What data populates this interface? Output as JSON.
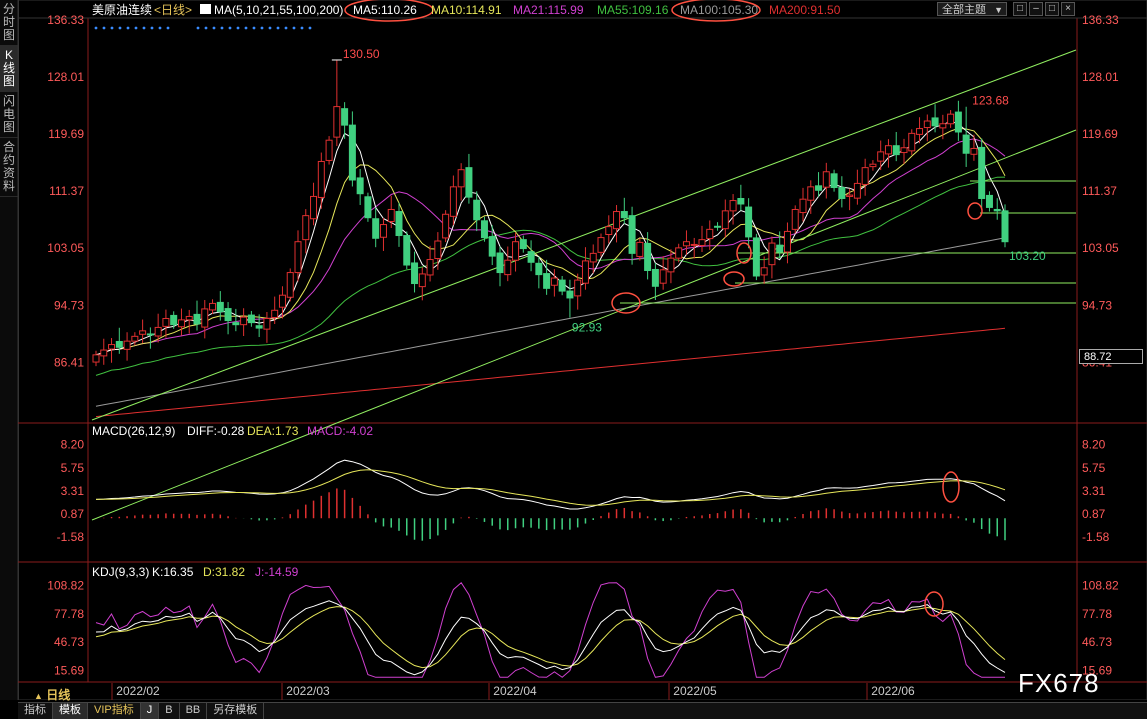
{
  "sidebar": {
    "items": [
      {
        "label": "分时图",
        "active": false
      },
      {
        "label": "K线图",
        "active": true
      },
      {
        "label": "闪电图",
        "active": false
      },
      {
        "label": "合约资料",
        "active": false
      }
    ]
  },
  "header": {
    "instrument": "美原油连续",
    "period": "<日线>",
    "ma_prefix": "MA(5,10,21,55,100,200)",
    "ma_values": [
      {
        "label": "MA5:110.26",
        "color": "#ffffff",
        "circled": true
      },
      {
        "label": "MA10:114.91",
        "color": "#e6e65a",
        "circled": false
      },
      {
        "label": "MA21:115.99",
        "color": "#d040d0",
        "circled": false
      },
      {
        "label": "MA55:109.16",
        "color": "#40c040",
        "circled": false
      },
      {
        "label": "MA100:105.30",
        "color": "#9a9a9a",
        "circled": true
      },
      {
        "label": "MA200:91.50",
        "color": "#e03030",
        "circled": false
      }
    ],
    "theme_button": "全部主题",
    "window_buttons": [
      "□",
      "–",
      "□",
      "×"
    ]
  },
  "price_axis": {
    "labels": [
      "136.33",
      "128.01",
      "119.69",
      "111.37",
      "103.05",
      "94.73",
      "86.41"
    ],
    "current_price": "88.72",
    "ymin": 78,
    "ymax": 136.33
  },
  "annotations": {
    "high_label": "130.50",
    "high2_label": "123.68",
    "low_label": "92.93",
    "last_label": "103.20"
  },
  "macd": {
    "title": "MACD(26,12,9)",
    "diff": "DIFF:-0.28",
    "dea": "DEA:1.73",
    "macd": "MACD:-4.02",
    "axis_labels": [
      "8.20",
      "5.75",
      "3.31",
      "0.87",
      "-1.58"
    ]
  },
  "kdj": {
    "title": "KDJ(9,3,3)",
    "k": "K:16.35",
    "d": "D:31.82",
    "j": "J:-14.59",
    "axis_labels": [
      "108.82",
      "77.78",
      "46.73",
      "15.69"
    ]
  },
  "x_axis": {
    "labels": [
      "2022/02",
      "2022/03",
      "2022/04",
      "2022/05",
      "2022/06"
    ]
  },
  "bottom_tabs": [
    "指标",
    "模板",
    "VIP指标",
    "J",
    "B",
    "BB",
    "另存模板"
  ],
  "period_label": "日线",
  "watermark": "FX678",
  "colors": {
    "up": "#e03030",
    "down": "#40d080",
    "ma5": "#ffffff",
    "ma10": "#e6e65a",
    "ma21": "#d040d0",
    "ma55": "#40c040",
    "ma100": "#9a9a9a",
    "ma200": "#e03030",
    "trend": "#90ee60",
    "axis_text": "#ff5a5a",
    "circle": "#ff5040"
  },
  "chart_data": {
    "type": "candlestick",
    "closes": [
      87.5,
      88.2,
      89.0,
      88.6,
      89.5,
      90.2,
      91.0,
      90.4,
      91.5,
      92.8,
      91.9,
      92.6,
      93.1,
      92.0,
      94.2,
      95.0,
      93.8,
      92.5,
      91.9,
      93.0,
      92.2,
      91.4,
      92.8,
      94.0,
      96.2,
      99.5,
      104.0,
      107.8,
      110.6,
      115.7,
      118.8,
      123.7,
      121.0,
      113.0,
      111.0,
      107.5,
      104.5,
      106.5,
      108.7,
      104.9,
      100.6,
      97.9,
      99.3,
      101.4,
      104.1,
      108.0,
      112.0,
      114.5,
      110.5,
      107.2,
      104.6,
      101.9,
      99.5,
      101.3,
      104.0,
      103.0,
      101.0,
      99.2,
      97.2,
      98.7,
      96.8,
      95.8,
      98.4,
      101.2,
      102.3,
      104.6,
      106.2,
      108.4,
      107.5,
      102.3,
      103.9,
      99.8,
      97.5,
      99.9,
      101.6,
      103.1,
      104.0,
      103.6,
      104.3,
      105.8,
      106.2,
      108.5,
      110.0,
      109.5,
      104.7,
      99.0,
      100.2,
      103.8,
      102.5,
      105.5,
      108.7,
      110.2,
      112.0,
      111.5,
      114.2,
      111.9,
      110.3,
      110.8,
      112.5,
      114.8,
      115.3,
      117.1,
      118.0,
      116.7,
      117.7,
      119.8,
      120.5,
      121.6,
      120.9,
      121.2,
      122.6,
      120.0,
      116.9,
      117.6,
      110.3,
      109.0,
      108.5,
      104.0
    ],
    "x_range": [
      "2022/02",
      "2022/06"
    ],
    "y_range": [
      78,
      136.33
    ]
  }
}
